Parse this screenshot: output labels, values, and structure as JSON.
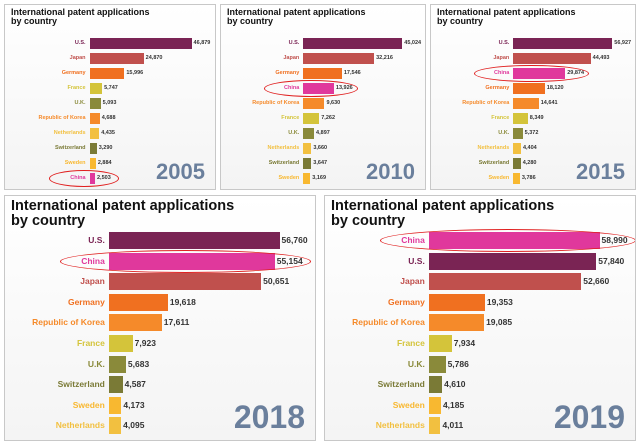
{
  "chart_data": [
    {
      "type": "bar",
      "title": "International patent applications by country",
      "annotation": "2005",
      "highlight": "China",
      "categories": [
        "U.S.",
        "Japan",
        "Germany",
        "France",
        "U.K.",
        "Republic of Korea",
        "Netherlands",
        "Switzerland",
        "Sweden",
        "China"
      ],
      "values": [
        46879,
        24870,
        15996,
        5747,
        5093,
        4688,
        4435,
        3290,
        2884,
        2503
      ],
      "value_labels": [
        "46,879",
        "24,870",
        "15,996",
        "5,747",
        "5,093",
        "4,688",
        "4,435",
        "3,290",
        "2,884",
        "2,503"
      ],
      "colors": [
        "#7a2454",
        "#c0504d",
        "#f07020",
        "#d4c43a",
        "#8a8a3a",
        "#f58a2a",
        "#f2c040",
        "#7a7a36",
        "#f8b830",
        "#e0389c"
      ]
    },
    {
      "type": "bar",
      "title": "International patent applications by country",
      "annotation": "2010",
      "highlight": "China",
      "categories": [
        "U.S.",
        "Japan",
        "Germany",
        "China",
        "Republic of Korea",
        "France",
        "U.K.",
        "Netherlands",
        "Switzerland",
        "Sweden"
      ],
      "values": [
        45024,
        32216,
        17546,
        13926,
        9630,
        7262,
        4897,
        3660,
        3647,
        3169
      ],
      "value_labels": [
        "45,024",
        "32,216",
        "17,546",
        "13,926",
        "9,630",
        "7,262",
        "4,897",
        "3,660",
        "3,647",
        "3,169"
      ],
      "colors": [
        "#7a2454",
        "#c0504d",
        "#f07020",
        "#e0389c",
        "#f58a2a",
        "#d4c43a",
        "#8a8a3a",
        "#f2c040",
        "#7a7a36",
        "#f8b830"
      ]
    },
    {
      "type": "bar",
      "title": "International patent applications by country",
      "annotation": "2015",
      "highlight": "China",
      "categories": [
        "U.S.",
        "Japan",
        "China",
        "Germany",
        "Republic of Korea",
        "France",
        "U.K.",
        "Netherlands",
        "Switzerland",
        "Sweden"
      ],
      "values": [
        56927,
        44493,
        29874,
        18120,
        14641,
        8349,
        5372,
        4404,
        4280,
        3786
      ],
      "value_labels": [
        "56,927",
        "44,493",
        "29,874",
        "18,120",
        "14,641",
        "8,349",
        "5,372",
        "4,404",
        "4,280",
        "3,786"
      ],
      "colors": [
        "#7a2454",
        "#c0504d",
        "#e0389c",
        "#f07020",
        "#f58a2a",
        "#d4c43a",
        "#8a8a3a",
        "#f2c040",
        "#7a7a36",
        "#f8b830"
      ]
    },
    {
      "type": "bar",
      "title": "International patent applications by country",
      "annotation": "2018",
      "highlight": "China",
      "categories": [
        "U.S.",
        "China",
        "Japan",
        "Germany",
        "Republic of Korea",
        "France",
        "U.K.",
        "Switzerland",
        "Sweden",
        "Netherlands"
      ],
      "values": [
        56760,
        55154,
        50651,
        19618,
        17611,
        7923,
        5683,
        4587,
        4173,
        4095
      ],
      "value_labels": [
        "56,760",
        "55,154",
        "50,651",
        "19,618",
        "17,611",
        "7,923",
        "5,683",
        "4,587",
        "4,173",
        "4,095"
      ],
      "colors": [
        "#7a2454",
        "#e0389c",
        "#c0504d",
        "#f07020",
        "#f58a2a",
        "#d4c43a",
        "#8a8a3a",
        "#7a7a36",
        "#f8b830",
        "#f2c040"
      ]
    },
    {
      "type": "bar",
      "title": "International patent applications by country",
      "annotation": "2019",
      "highlight": "China",
      "categories": [
        "China",
        "U.S.",
        "Japan",
        "Germany",
        "Republic of Korea",
        "France",
        "U.K.",
        "Switzerland",
        "Sweden",
        "Netherlands"
      ],
      "values": [
        58990,
        57840,
        52660,
        19353,
        19085,
        7934,
        5786,
        4610,
        4185,
        4011
      ],
      "value_labels": [
        "58,990",
        "57,840",
        "52,660",
        "19,353",
        "19,085",
        "7,934",
        "5,786",
        "4,610",
        "4,185",
        "4,011"
      ],
      "colors": [
        "#e0389c",
        "#7a2454",
        "#c0504d",
        "#f07020",
        "#f58a2a",
        "#d4c43a",
        "#8a8a3a",
        "#7a7a36",
        "#f8b830",
        "#f2c040"
      ]
    }
  ]
}
